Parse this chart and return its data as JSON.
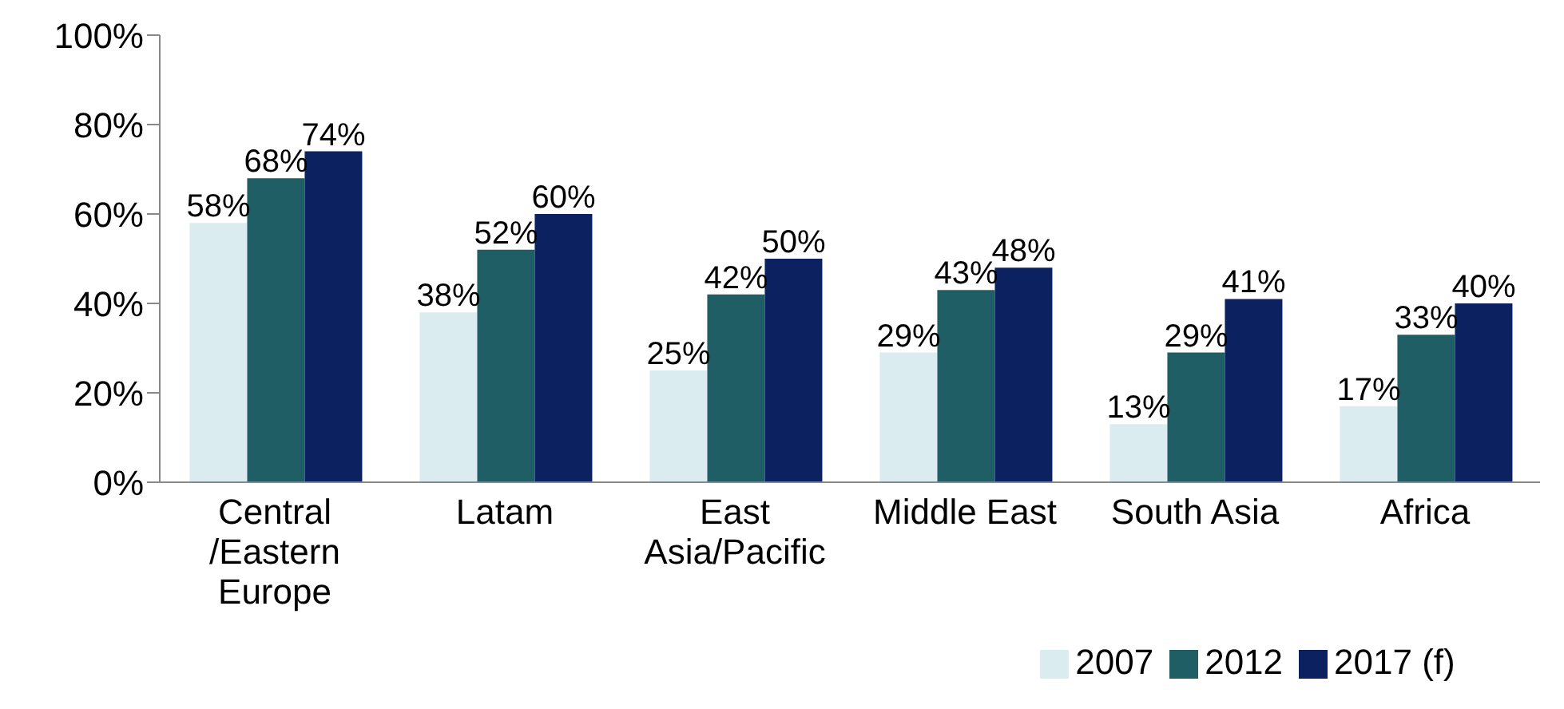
{
  "chart_data": {
    "type": "bar",
    "categories": [
      "Central /Eastern Europe",
      "Latam",
      "East Asia/Pacific",
      "Middle East",
      "South Asia",
      "Africa"
    ],
    "series": [
      {
        "name": "2007",
        "color": "#daecef",
        "values": [
          58,
          38,
          25,
          29,
          13,
          17
        ],
        "value_labels": [
          "58%",
          "38%",
          "25%",
          "29%",
          "13%",
          "17%"
        ]
      },
      {
        "name": "2012",
        "color": "#1f5e64",
        "values": [
          68,
          52,
          42,
          43,
          29,
          33
        ],
        "value_labels": [
          "68%",
          "52%",
          "42%",
          "43%",
          "29%",
          "33%"
        ]
      },
      {
        "name": "2017 (f)",
        "color": "#0c2160",
        "values": [
          74,
          60,
          50,
          48,
          41,
          40
        ],
        "value_labels": [
          "74%",
          "60%",
          "50%",
          "48%",
          "41%",
          "40%"
        ]
      }
    ],
    "ylim": [
      0,
      100
    ],
    "yticks": [
      {
        "value": 0,
        "label": "0%"
      },
      {
        "value": 20,
        "label": "20%"
      },
      {
        "value": 40,
        "label": "40%"
      },
      {
        "value": 60,
        "label": "60%"
      },
      {
        "value": 80,
        "label": "80%"
      },
      {
        "value": 100,
        "label": "100%"
      }
    ],
    "legend": "bottom",
    "grid": false
  }
}
